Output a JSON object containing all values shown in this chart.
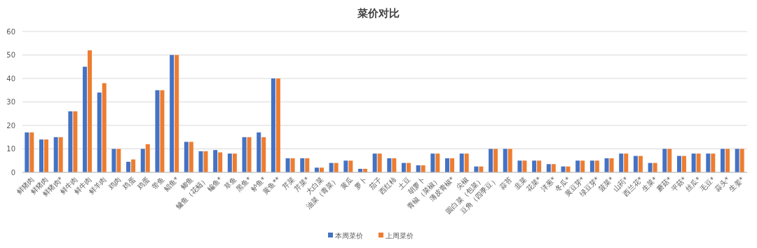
{
  "chart_data": {
    "type": "bar",
    "title": "菜价对比",
    "categories": [
      "鲜猪肉",
      "鲜猪肉",
      "鲜猪肉*",
      "鲜牛肉",
      "鲜牛肉",
      "鲜羊肉",
      "鸡肉",
      "鸡蛋",
      "鸡蛋",
      "带鱼",
      "鲳鱼*",
      "鲫鱼",
      "鳙鱼（花鲢）",
      "鳊鱼*",
      "草鱼",
      "黑鱼*",
      "鲈鱼*",
      "黄鱼**",
      "芹菜",
      "芹菜*",
      "大白菜",
      "油菜（青菜）",
      "黄瓜",
      "萝卜",
      "茄子",
      "西红柿",
      "土豆",
      "胡萝卜",
      "青椒（菜椒）",
      "薄皮青椒*",
      "尖椒",
      "圆白菜（包菜）",
      "豆角（四季豆）",
      "蒜苔",
      "韭菜",
      "花菜*",
      "洋葱*",
      "冬瓜*",
      "黄豆芽*",
      "绿豆芽*",
      "菠菜*",
      "山药*",
      "西兰花*",
      "生菜*",
      "蘑菇*",
      "平菇*",
      "丝瓜*",
      "毛豆*",
      "蒜头*",
      "生姜*"
    ],
    "series": [
      {
        "name": "本周菜价",
        "color": "#4472c4",
        "values": [
          17,
          14,
          15,
          26,
          45,
          34,
          10,
          4.5,
          10,
          35,
          50,
          13,
          9,
          9.5,
          8,
          15,
          17,
          40,
          6,
          6,
          2,
          4,
          5,
          1.5,
          8,
          6,
          4,
          3,
          8,
          6,
          8,
          2.5,
          10,
          10,
          5,
          5,
          3.5,
          2.5,
          5,
          5,
          6,
          8,
          7,
          4,
          10,
          7,
          8,
          8,
          10,
          10
        ]
      },
      {
        "name": "上周菜价",
        "color": "#ed7d31",
        "values": [
          17,
          14,
          15,
          26,
          52,
          38,
          10,
          5.5,
          12,
          35,
          50,
          13,
          9,
          8.5,
          8,
          15,
          15,
          40,
          6,
          6,
          2,
          4,
          5,
          1.5,
          8,
          6,
          4,
          3,
          8,
          6,
          8,
          2.5,
          10,
          10,
          5,
          5,
          3.5,
          2.5,
          5,
          5,
          6,
          8,
          7,
          4,
          10,
          7,
          8,
          8,
          10,
          10
        ]
      }
    ],
    "ylim": [
      0,
      60
    ],
    "yticks": [
      0,
      10,
      20,
      30,
      40,
      50,
      60
    ],
    "grid": "y",
    "legend": "bottom"
  }
}
